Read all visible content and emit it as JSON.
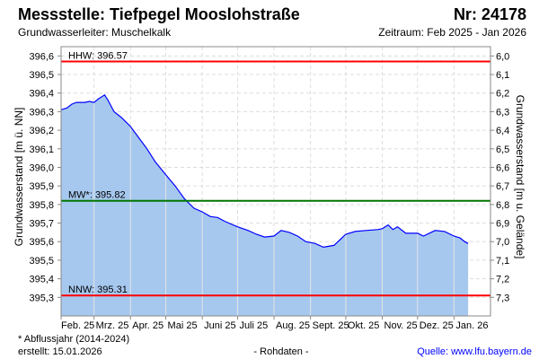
{
  "header": {
    "title": "Messstelle: Tiefpegel Mooslohstraße",
    "number": "Nr: 24178",
    "aquifer": "Grundwasserleiter: Muschelkalk",
    "period": "Zeitraum: Feb 2025 - Jan 2026"
  },
  "footer": {
    "note": "* Abflussjahr (2014-2024)",
    "created": "erstellt:  15.01.2026",
    "raw": "- Rohdaten -",
    "source": "Quelle: www.lfu.bayern.de"
  },
  "colors": {
    "fill": "#a6c8ef",
    "line": "#0000ff",
    "hhw": "#ff0000",
    "nnw": "#ff0000",
    "mw": "#007700",
    "source": "#0000ff"
  },
  "chart_data": {
    "type": "area",
    "ylabel": "Grundwasserstand [m ü. NN]",
    "y2label": "Grundwasserstand [m u. Gelände]",
    "ylim": [
      395.2,
      396.65
    ],
    "xlim": [
      "2025-02-01",
      "2026-02-01"
    ],
    "yticks": [
      "396,6",
      "396,5",
      "396,4",
      "396,3",
      "396,2",
      "396,1",
      "396,0",
      "395,9",
      "395,8",
      "395,7",
      "395,6",
      "395,5",
      "395,4",
      "395,3"
    ],
    "ytick_values": [
      396.6,
      396.5,
      396.4,
      396.3,
      396.2,
      396.1,
      396.0,
      395.9,
      395.8,
      395.7,
      395.6,
      395.5,
      395.4,
      395.3
    ],
    "y2ticks": [
      "6,0",
      "6,1",
      "6,2",
      "6,3",
      "6,4",
      "6,5",
      "6,6",
      "6,7",
      "6,8",
      "6,9",
      "7,0",
      "7,1",
      "7,2",
      "7,3"
    ],
    "xticks": [
      "Feb. 25",
      "Mrz. 25",
      "Apr. 25",
      "Mai 25",
      "Juni 25",
      "Juli 25",
      "Aug. 25",
      "Sept. 25",
      "Okt. 25",
      "Nov. 25",
      "Dez. 25",
      "Jan. 26"
    ],
    "xtick_dates": [
      "2025-02-01",
      "2025-03-01",
      "2025-04-01",
      "2025-05-01",
      "2025-06-01",
      "2025-07-01",
      "2025-08-01",
      "2025-09-01",
      "2025-10-01",
      "2025-11-01",
      "2025-12-01",
      "2026-01-01"
    ],
    "reference_lines": [
      {
        "label": "HHW: 396.57",
        "value": 396.57,
        "color": "#ff0000"
      },
      {
        "label": "MW*: 395.82",
        "value": 395.82,
        "color": "#007700"
      },
      {
        "label": "NNW: 395.31",
        "value": 395.31,
        "color": "#ff0000"
      }
    ],
    "series": [
      {
        "name": "Grundwasserstand",
        "x": [
          "2025-02-01",
          "2025-02-06",
          "2025-02-10",
          "2025-02-14",
          "2025-02-21",
          "2025-02-25",
          "2025-03-01",
          "2025-03-05",
          "2025-03-10",
          "2025-03-13",
          "2025-03-18",
          "2025-03-24",
          "2025-04-01",
          "2025-04-08",
          "2025-04-15",
          "2025-04-22",
          "2025-05-01",
          "2025-05-09",
          "2025-05-17",
          "2025-05-25",
          "2025-06-01",
          "2025-06-08",
          "2025-06-14",
          "2025-06-20",
          "2025-07-01",
          "2025-07-10",
          "2025-07-17",
          "2025-07-24",
          "2025-08-01",
          "2025-08-07",
          "2025-08-14",
          "2025-08-21",
          "2025-08-28",
          "2025-09-05",
          "2025-09-12",
          "2025-09-21",
          "2025-10-01",
          "2025-10-09",
          "2025-10-18",
          "2025-10-28",
          "2025-11-01",
          "2025-11-06",
          "2025-11-10",
          "2025-11-14",
          "2025-11-21",
          "2025-12-01",
          "2025-12-06",
          "2025-12-16",
          "2025-12-24",
          "2026-01-01",
          "2026-01-06",
          "2026-01-10",
          "2026-01-13"
        ],
        "y": [
          396.31,
          396.32,
          396.34,
          396.35,
          396.35,
          396.355,
          396.35,
          396.37,
          396.39,
          396.36,
          396.3,
          396.27,
          396.22,
          396.16,
          396.1,
          396.03,
          395.96,
          395.9,
          395.83,
          395.78,
          395.76,
          395.735,
          395.73,
          395.71,
          395.68,
          395.66,
          395.64,
          395.625,
          395.63,
          395.66,
          395.65,
          395.63,
          395.6,
          395.59,
          395.57,
          395.58,
          395.64,
          395.655,
          395.66,
          395.665,
          395.67,
          395.69,
          395.665,
          395.68,
          395.645,
          395.645,
          395.63,
          395.66,
          395.655,
          395.63,
          395.62,
          395.6,
          395.59
        ]
      }
    ]
  }
}
